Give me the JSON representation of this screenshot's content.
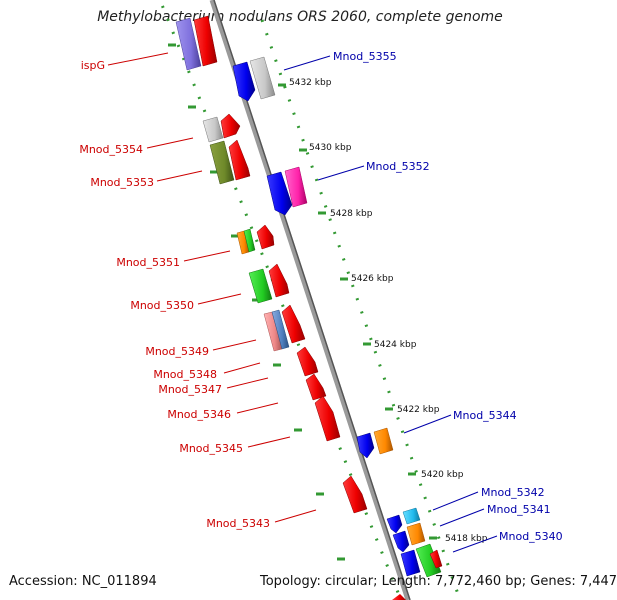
{
  "title": "Methylobacterium nodulans ORS 2060, complete genome",
  "footer": {
    "accession": "Accession: NC_011894",
    "info": "Topology: circular; Length: 7,772,460 bp; Genes: 7,447"
  },
  "colors": {
    "backbone": "#8c8c8c",
    "dots": "#339933",
    "left_labels": "#cc0000",
    "right_labels": "#0000aa"
  },
  "ticks": [
    "5432 kbp",
    "5430 kbp",
    "5428 kbp",
    "5426 kbp",
    "5424 kbp",
    "5422 kbp",
    "5420 kbp",
    "5418 kbp"
  ],
  "left_labels": [
    "ispG",
    "Mnod_5354",
    "Mnod_5353",
    "Mnod_5351",
    "Mnod_5350",
    "Mnod_5349",
    "Mnod_5348",
    "Mnod_5347",
    "Mnod_5346",
    "Mnod_5345",
    "Mnod_5343"
  ],
  "right_labels": [
    "Mnod_5355",
    "Mnod_5352",
    "Mnod_5344",
    "Mnod_5342",
    "Mnod_5341",
    "Mnod_5340"
  ]
}
